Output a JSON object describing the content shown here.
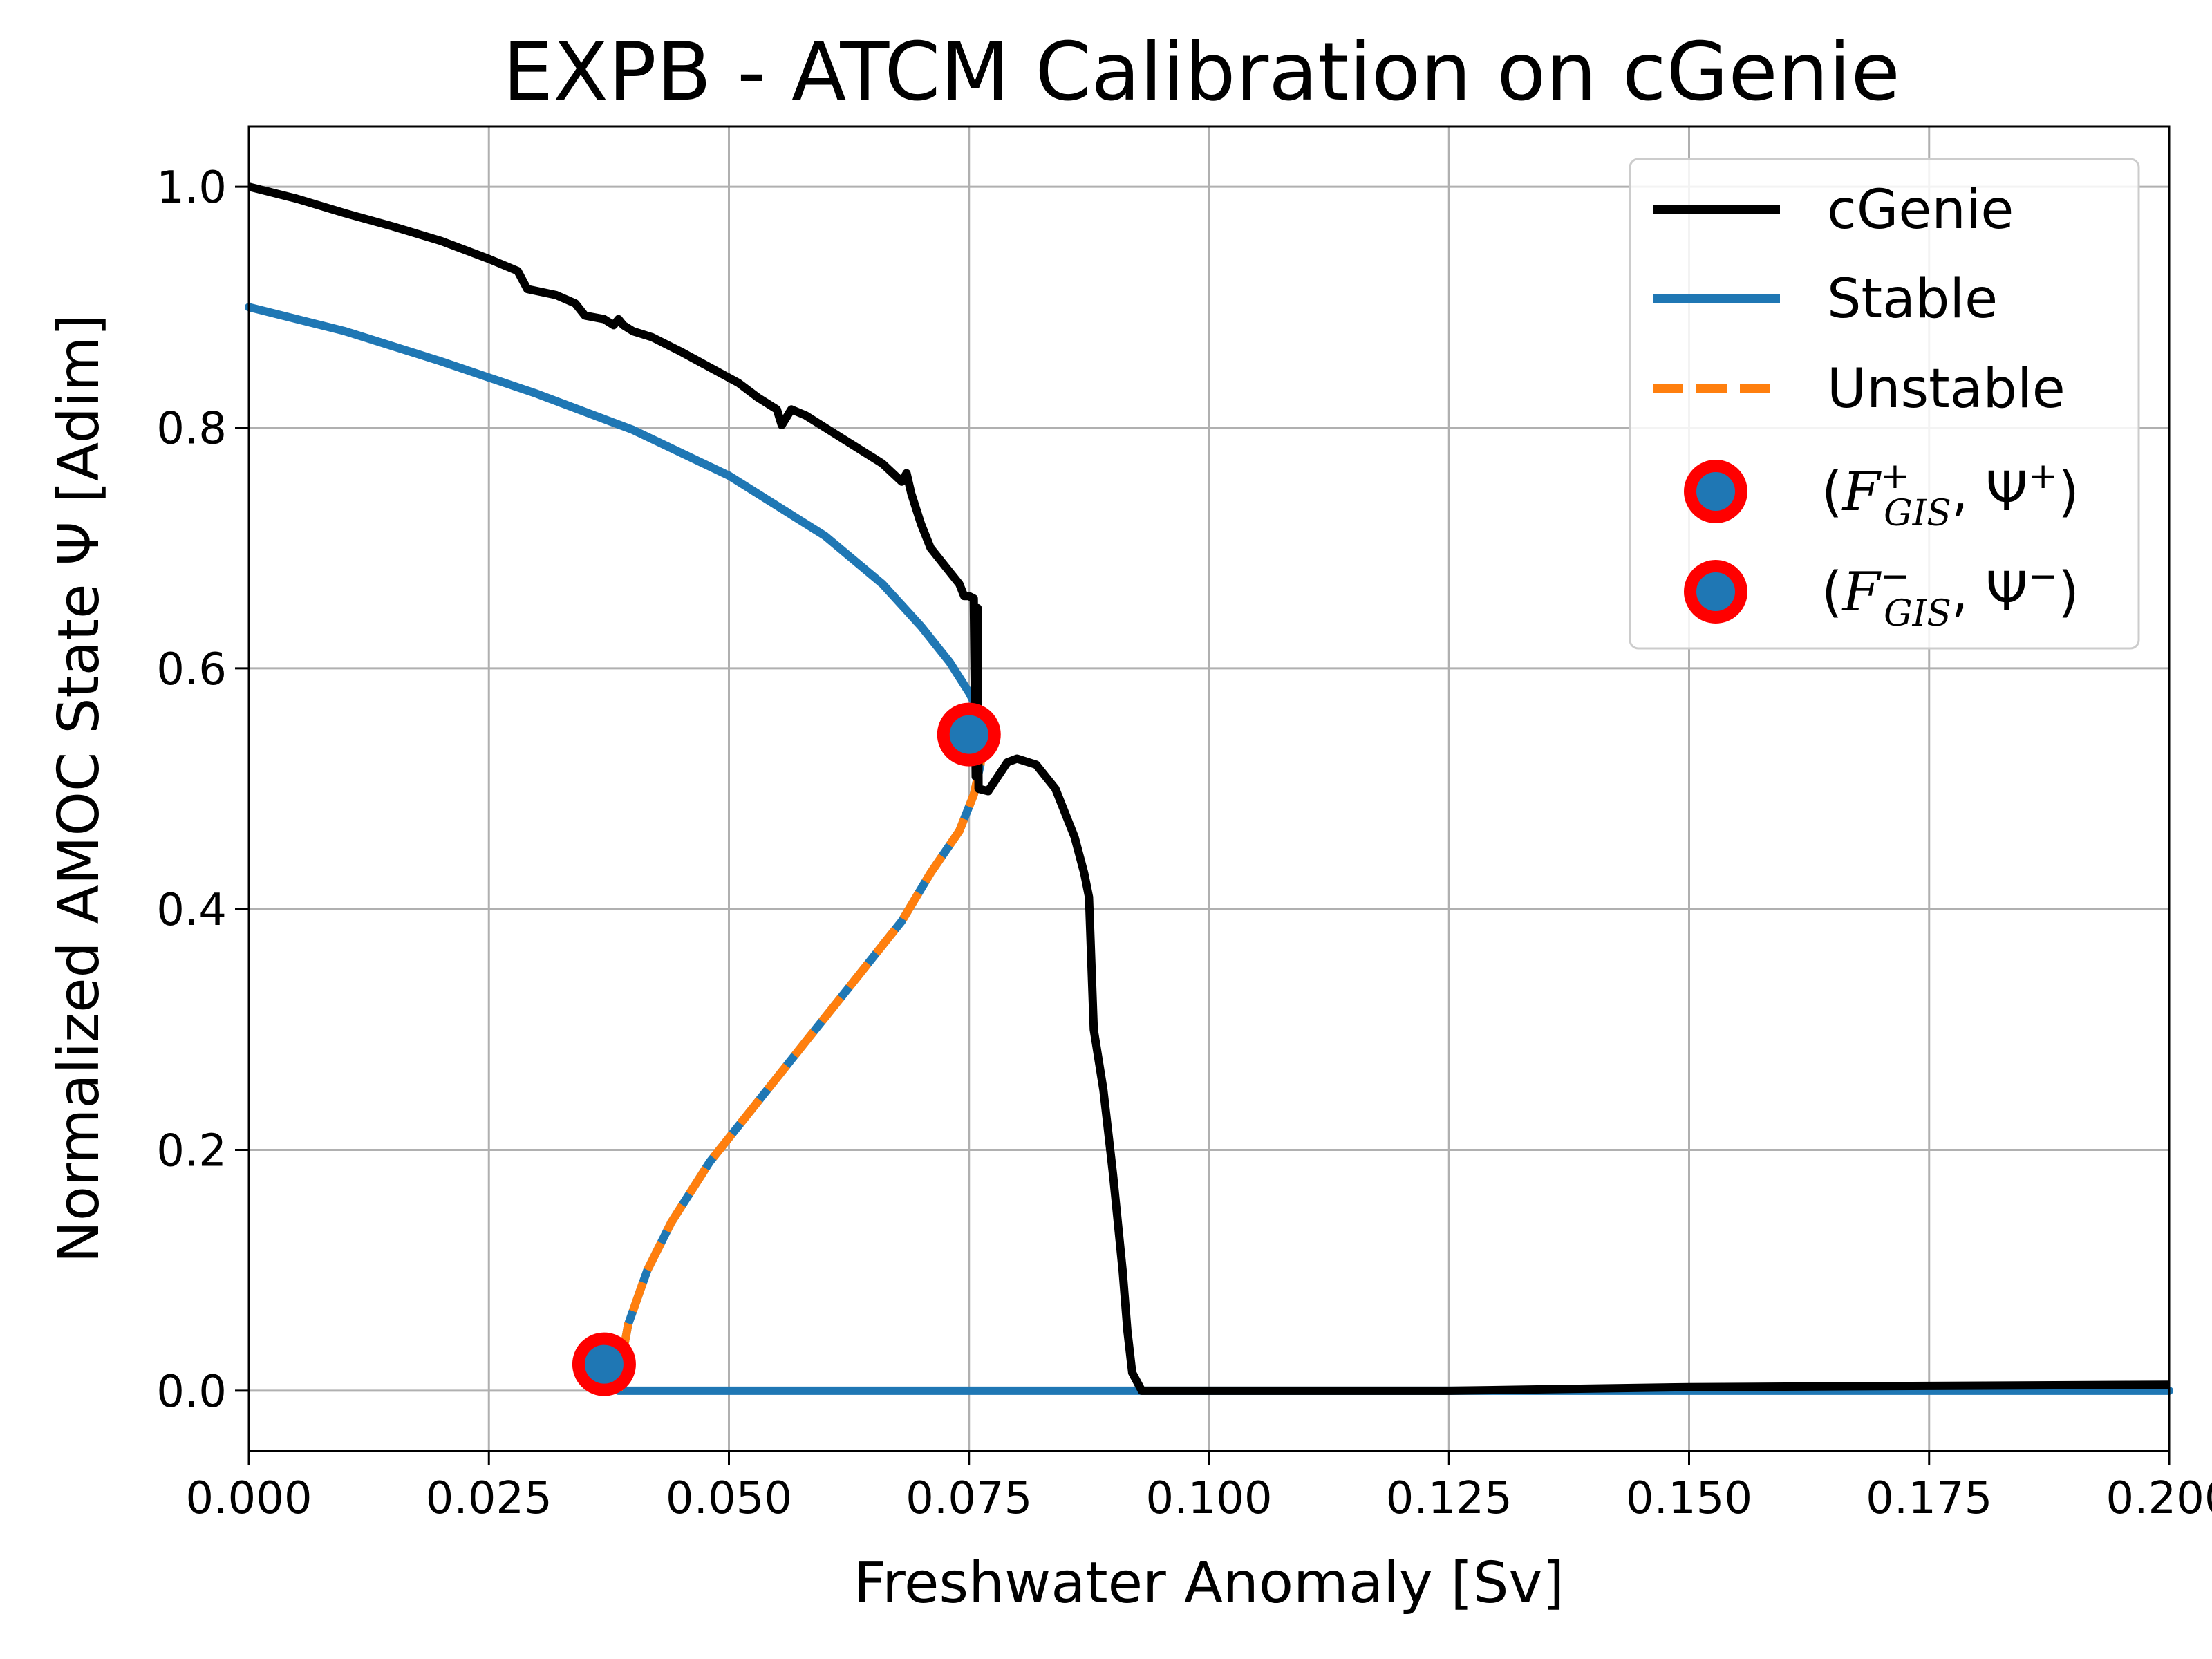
{
  "chart_data": {
    "type": "line",
    "title": "EXPB - ATCM Calibration on cGenie",
    "xlabel": "Freshwater Anomaly [Sv]",
    "ylabel": "Normalized AMOC State Ψ [Adim]",
    "xlim": [
      0.0,
      0.2
    ],
    "ylim": [
      -0.05,
      1.05
    ],
    "xticks": [
      "0.000",
      "0.025",
      "0.050",
      "0.075",
      "0.100",
      "0.125",
      "0.150",
      "0.175",
      "0.200"
    ],
    "yticks": [
      "0.0",
      "0.2",
      "0.4",
      "0.6",
      "0.8",
      "1.0"
    ],
    "grid": true,
    "legend_position": "top-right",
    "series": [
      {
        "name": "cGenie",
        "style": "solid",
        "color": "#000000",
        "points": [
          [
            0.0,
            1.0
          ],
          [
            0.005,
            0.99
          ],
          [
            0.01,
            0.978
          ],
          [
            0.015,
            0.967
          ],
          [
            0.02,
            0.955
          ],
          [
            0.025,
            0.94
          ],
          [
            0.028,
            0.93
          ],
          [
            0.029,
            0.915
          ],
          [
            0.032,
            0.91
          ],
          [
            0.034,
            0.903
          ],
          [
            0.035,
            0.893
          ],
          [
            0.037,
            0.89
          ],
          [
            0.038,
            0.885
          ],
          [
            0.0385,
            0.89
          ],
          [
            0.039,
            0.885
          ],
          [
            0.04,
            0.88
          ],
          [
            0.042,
            0.875
          ],
          [
            0.045,
            0.863
          ],
          [
            0.048,
            0.85
          ],
          [
            0.051,
            0.837
          ],
          [
            0.053,
            0.825
          ],
          [
            0.055,
            0.815
          ],
          [
            0.0555,
            0.802
          ],
          [
            0.0565,
            0.815
          ],
          [
            0.058,
            0.81
          ],
          [
            0.062,
            0.79
          ],
          [
            0.066,
            0.77
          ],
          [
            0.068,
            0.755
          ],
          [
            0.0685,
            0.762
          ],
          [
            0.069,
            0.745
          ],
          [
            0.07,
            0.72
          ],
          [
            0.071,
            0.7
          ],
          [
            0.073,
            0.68
          ],
          [
            0.074,
            0.67
          ],
          [
            0.0745,
            0.66
          ],
          [
            0.075,
            0.66
          ],
          [
            0.0755,
            0.658
          ],
          [
            0.0757,
            0.51
          ],
          [
            0.0759,
            0.65
          ],
          [
            0.076,
            0.5
          ],
          [
            0.077,
            0.498
          ],
          [
            0.078,
            0.51
          ],
          [
            0.079,
            0.522
          ],
          [
            0.08,
            0.525
          ],
          [
            0.082,
            0.52
          ],
          [
            0.084,
            0.5
          ],
          [
            0.086,
            0.46
          ],
          [
            0.087,
            0.43
          ],
          [
            0.0875,
            0.41
          ],
          [
            0.088,
            0.3
          ],
          [
            0.089,
            0.25
          ],
          [
            0.09,
            0.18
          ],
          [
            0.091,
            0.1
          ],
          [
            0.0915,
            0.05
          ],
          [
            0.092,
            0.015
          ],
          [
            0.093,
            0.0
          ],
          [
            0.1,
            0.0
          ],
          [
            0.125,
            0.0
          ],
          [
            0.15,
            0.003
          ],
          [
            0.175,
            0.004
          ],
          [
            0.2,
            0.005
          ]
        ]
      },
      {
        "name": "Stable",
        "style": "solid",
        "color": "#1f77b4",
        "segments": [
          [
            [
              0.0,
              0.9
            ],
            [
              0.01,
              0.88
            ],
            [
              0.02,
              0.855
            ],
            [
              0.03,
              0.828
            ],
            [
              0.04,
              0.798
            ],
            [
              0.05,
              0.76
            ],
            [
              0.06,
              0.71
            ],
            [
              0.066,
              0.67
            ],
            [
              0.07,
              0.635
            ],
            [
              0.073,
              0.605
            ],
            [
              0.075,
              0.58
            ],
            [
              0.076,
              0.565
            ],
            [
              0.0765,
              0.545
            ]
          ],
          [
            [
              0.0385,
              0.0
            ],
            [
              0.1,
              0.0
            ],
            [
              0.15,
              0.0
            ],
            [
              0.2,
              0.0
            ]
          ]
        ]
      },
      {
        "name": "Unstable",
        "style": "dashed",
        "color": "#ff7f0e",
        "overlay_color": "#1f77b4",
        "points": [
          [
            0.0765,
            0.545
          ],
          [
            0.0762,
            0.52
          ],
          [
            0.0755,
            0.495
          ],
          [
            0.074,
            0.465
          ],
          [
            0.071,
            0.43
          ],
          [
            0.068,
            0.39
          ],
          [
            0.063,
            0.34
          ],
          [
            0.058,
            0.29
          ],
          [
            0.053,
            0.24
          ],
          [
            0.048,
            0.19
          ],
          [
            0.044,
            0.14
          ],
          [
            0.0415,
            0.1
          ],
          [
            0.0395,
            0.055
          ],
          [
            0.0387,
            0.02
          ],
          [
            0.0385,
            0.0
          ]
        ]
      }
    ],
    "markers": [
      {
        "name": "(F⁺_GIS, Ψ⁺)",
        "x": 0.075,
        "y": 0.545
      },
      {
        "name": "(F⁻_GIS, Ψ⁻)",
        "x": 0.037,
        "y": 0.022
      }
    ],
    "marker_style": {
      "face": "#1f77b4",
      "edge": "#ff0000"
    }
  }
}
